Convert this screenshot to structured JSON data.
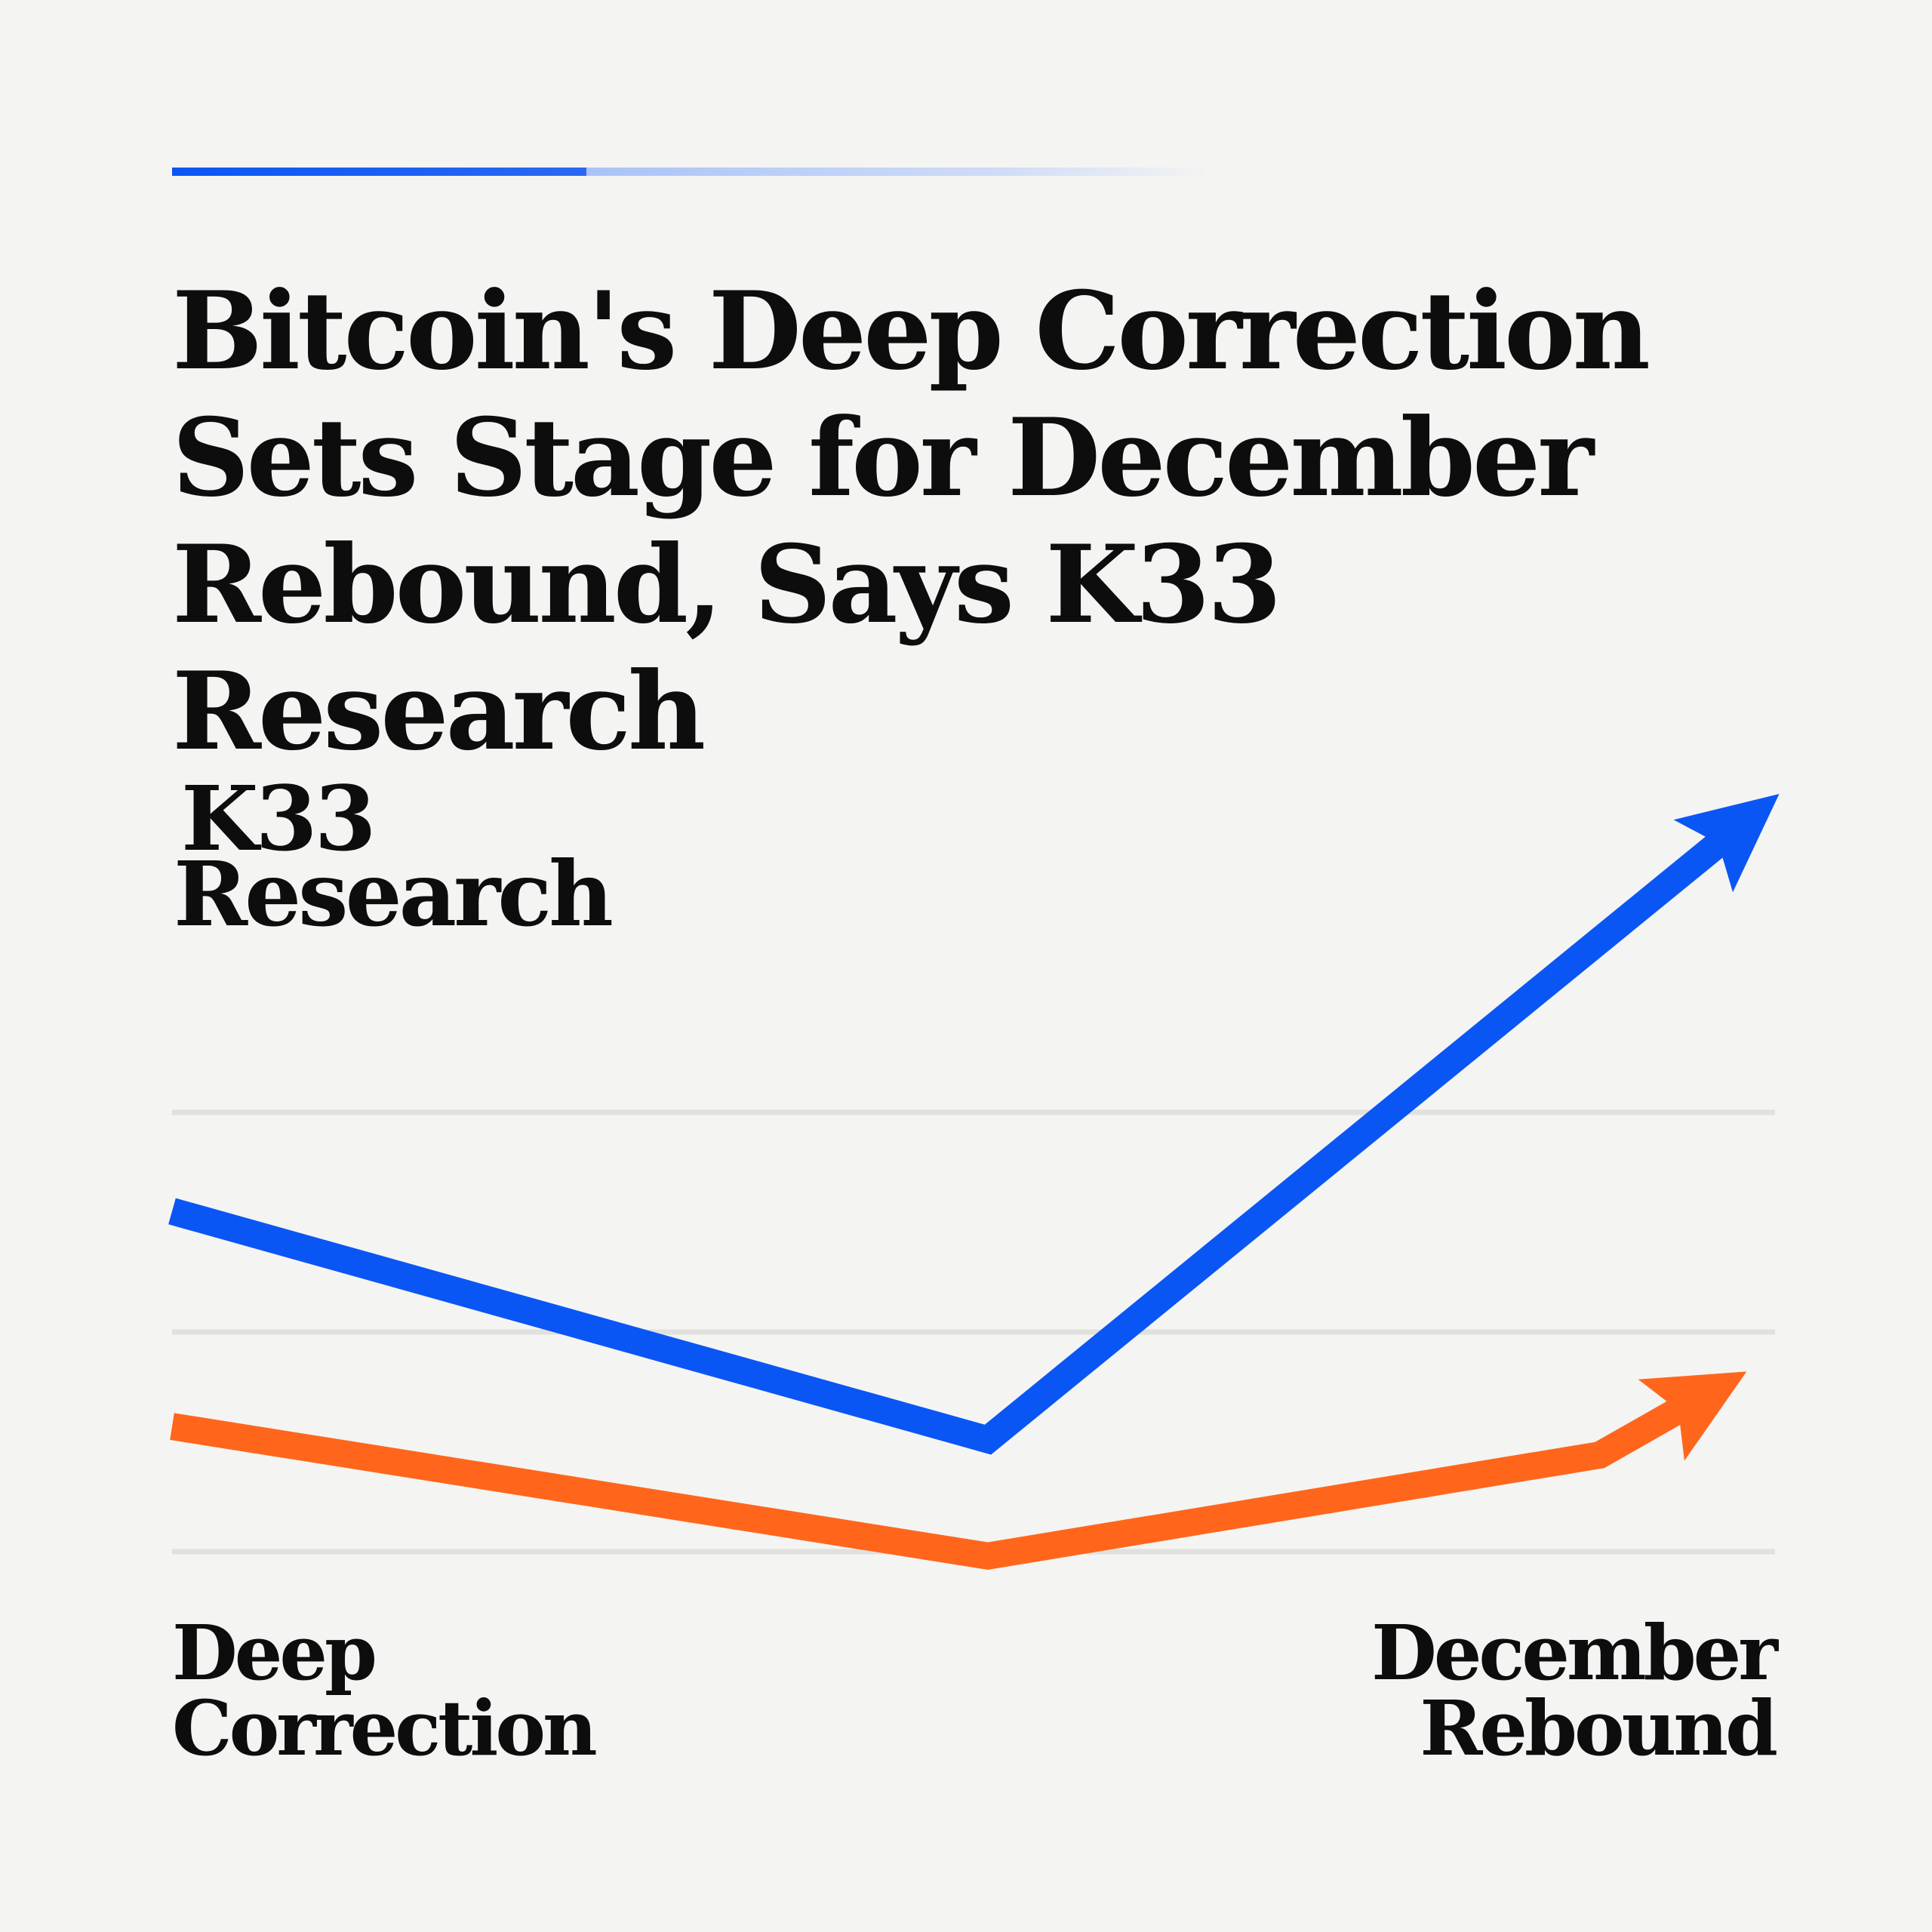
{
  "title": {
    "lines": [
      "Bitcoin's Deep Correction",
      "Sets Stage for December",
      "Rebound, Says K33 Research"
    ]
  },
  "logo": {
    "line1": "K33",
    "line2": "Research"
  },
  "colors": {
    "background": "#f4f4f2",
    "accent": "#0a56f5",
    "blue_series": "#0a56f5",
    "orange_series": "#ff661c",
    "gridline": "#e0e0df"
  },
  "chart_data": {
    "type": "line",
    "title": "",
    "xlabel": "",
    "ylabel": "",
    "grid": true,
    "gridlines": 3,
    "x_labels": {
      "start": [
        "Deep",
        "Correction"
      ],
      "end": [
        "December",
        "Rebound"
      ]
    },
    "xlim": [
      0,
      100
    ],
    "ylim": [
      -0.5,
      3.7
    ],
    "series": [
      {
        "color": "blue",
        "arrow_end": true,
        "x": [
          0,
          50,
          98.5
        ],
        "y": [
          1.55,
          0.51,
          3.45
        ]
      },
      {
        "color": "orange",
        "arrow_end": true,
        "x": [
          0,
          50,
          87.5,
          96.5
        ],
        "y": [
          0.57,
          -0.02,
          0.44,
          0.82
        ]
      }
    ]
  }
}
